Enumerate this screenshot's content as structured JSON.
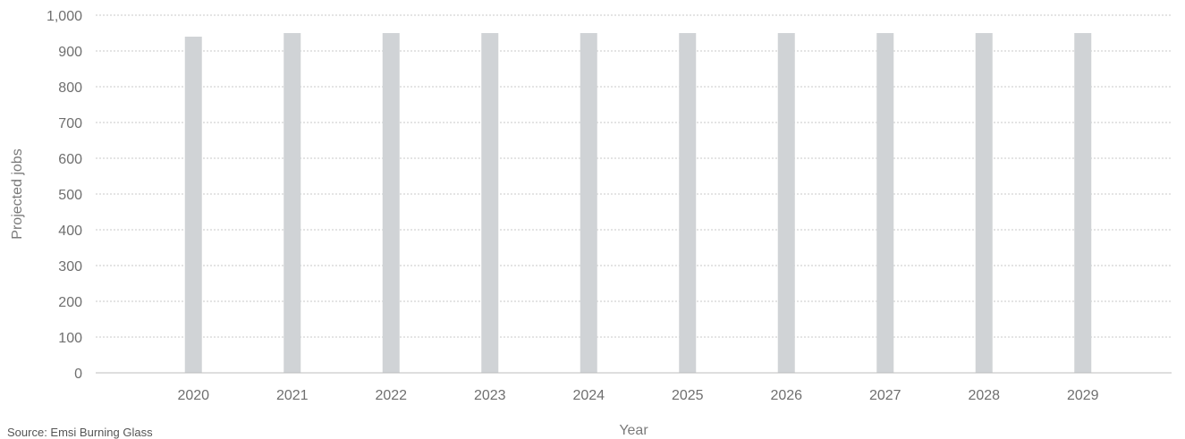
{
  "chart_data": {
    "type": "bar",
    "categories": [
      "2020",
      "2021",
      "2022",
      "2023",
      "2024",
      "2025",
      "2026",
      "2027",
      "2028",
      "2029"
    ],
    "series": [
      {
        "values": [
          940,
          950,
          950,
          950,
          950,
          950,
          950,
          950,
          950,
          950
        ]
      }
    ],
    "ylim": [
      0,
      1000
    ],
    "yticks": [
      0,
      100,
      200,
      300,
      400,
      500,
      600,
      700,
      800,
      900,
      1000
    ],
    "ytick_labels": [
      "0",
      "100",
      "200",
      "300",
      "400",
      "500",
      "600",
      "700",
      "800",
      "900",
      "1,000"
    ],
    "xlabel": "Year",
    "ylabel": "Projected jobs",
    "grid": "horizontal dotted",
    "bar_color": "#d0d3d6",
    "gridline_color": "#c8c8c8"
  },
  "source": "Source: Emsi Burning Glass"
}
